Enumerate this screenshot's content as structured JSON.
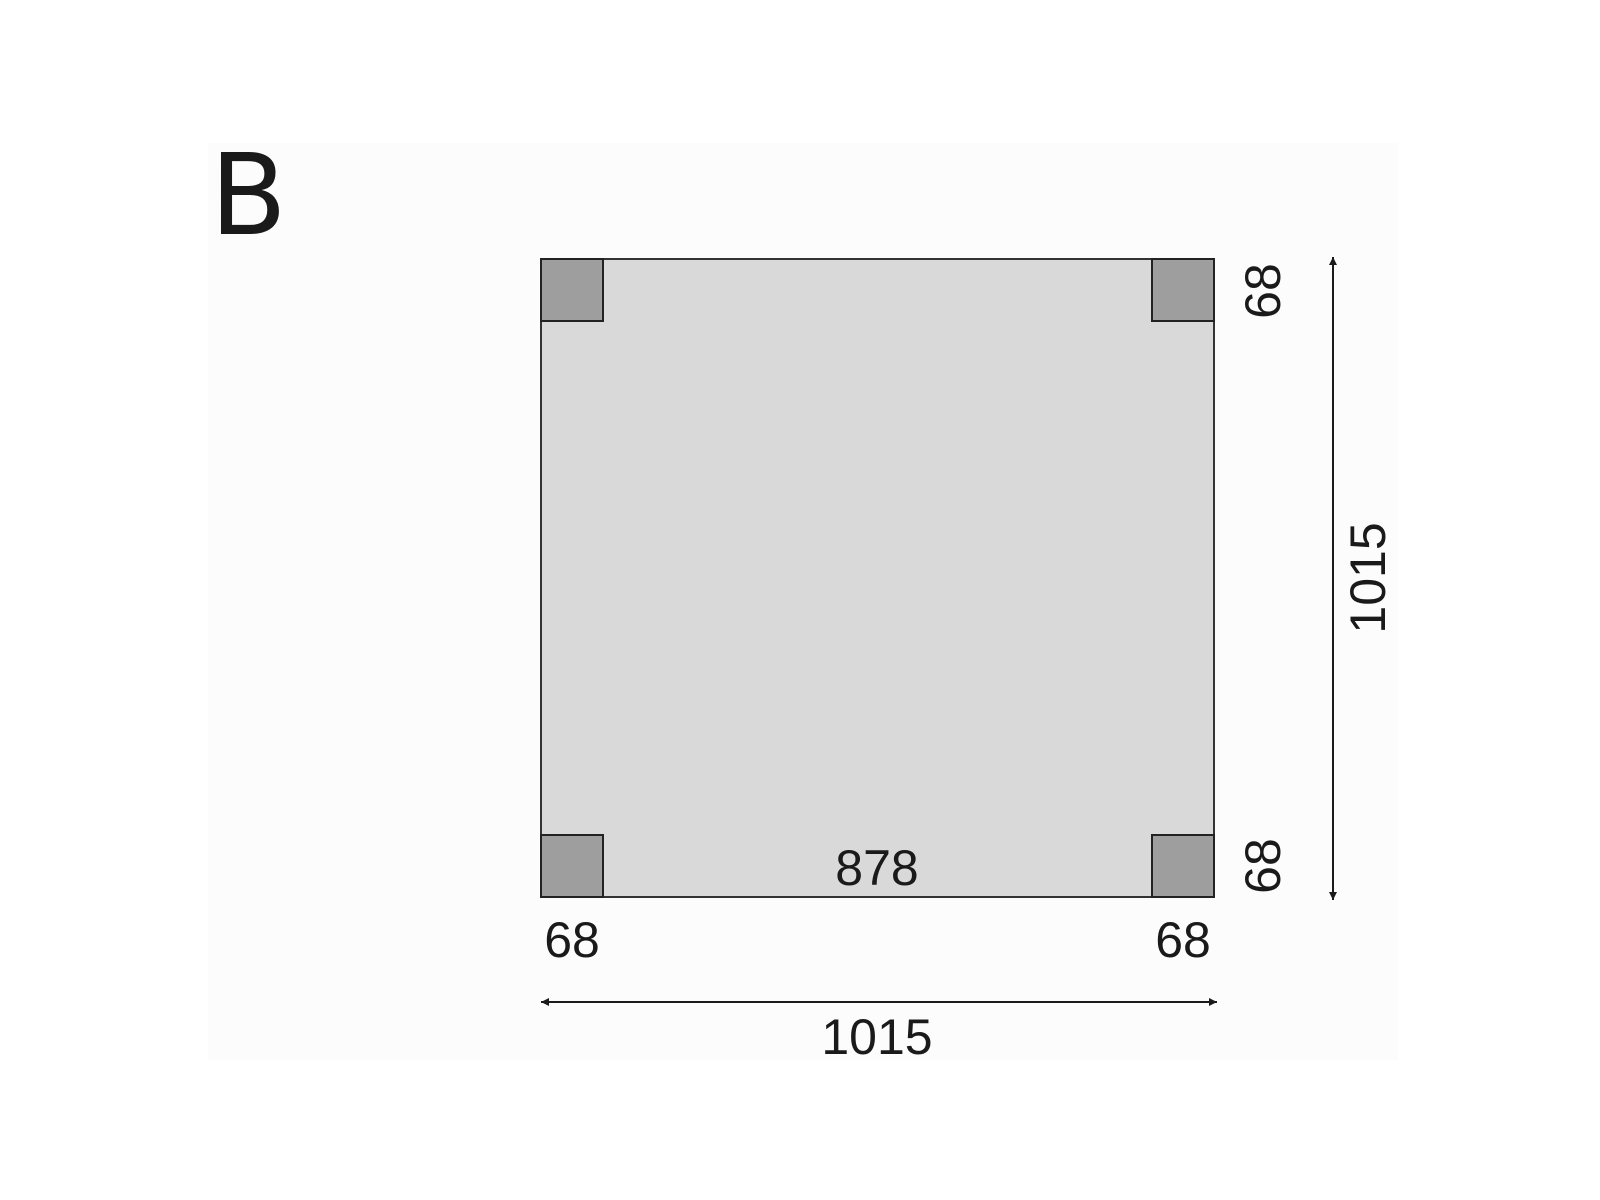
{
  "panel_label": "B",
  "dimensions": {
    "overall_width": "1015",
    "overall_depth": "1015",
    "inner_span": "878",
    "post_bottom_left": "68",
    "post_bottom_right": "68",
    "post_right_top": "68",
    "post_right_bottom": "68"
  },
  "colors": {
    "floor": "#d9d9d9",
    "post": "#9e9e9e",
    "outline": "#333333"
  }
}
